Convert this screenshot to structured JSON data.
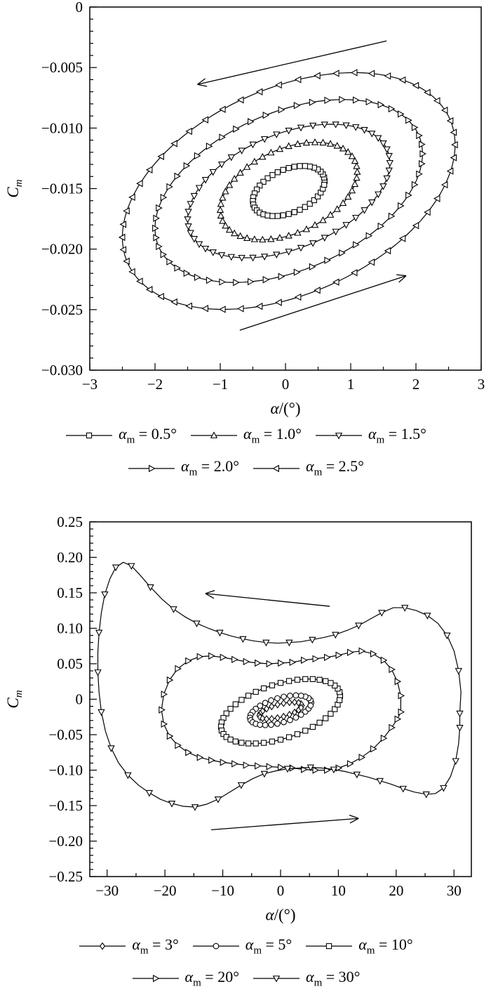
{
  "page": {
    "background": "#ffffff",
    "ink": "#000000"
  },
  "chart_data": [
    {
      "type": "line",
      "title": "",
      "xlabel": "α/(°)",
      "ylabel": {
        "main": "C",
        "sub": "m"
      },
      "xlim": [
        -3,
        3
      ],
      "ylim": [
        -0.03,
        0
      ],
      "x_minor_step": 0.5,
      "y_minor_step": 0.001,
      "grid": false,
      "legend_position": "below",
      "legend_rows": [
        3,
        2
      ],
      "line_color": "#000000",
      "xticks": [
        {
          "v": -3,
          "label": "−3"
        },
        {
          "v": -2,
          "label": "−2"
        },
        {
          "v": -1,
          "label": "−1"
        },
        {
          "v": 0,
          "label": "0"
        },
        {
          "v": 1,
          "label": "1"
        },
        {
          "v": 2,
          "label": "2"
        },
        {
          "v": 3,
          "label": "3"
        }
      ],
      "yticks": [
        {
          "v": 0,
          "label": "0"
        },
        {
          "v": -0.005,
          "label": "−0.005"
        },
        {
          "v": -0.01,
          "label": "−0.010"
        },
        {
          "v": -0.015,
          "label": "−0.015"
        },
        {
          "v": -0.02,
          "label": "−0.020"
        },
        {
          "v": -0.025,
          "label": "−0.025"
        },
        {
          "v": -0.03,
          "label": "−0.030"
        }
      ],
      "arrows": [
        {
          "from": [
            1.55,
            -0.0028
          ],
          "to": [
            -1.35,
            -0.0064
          ]
        },
        {
          "from": [
            -0.7,
            -0.0267
          ],
          "to": [
            1.85,
            -0.0222
          ]
        }
      ],
      "series": [
        {
          "marker": "square",
          "legend": {
            "symbol": "α",
            "subscript": "m",
            "rest": " = 0.5°"
          },
          "shape": {
            "kind": "sheared-ellipse",
            "cx": 0.05,
            "cy": -0.0152,
            "rx": 0.55,
            "h": 0.0019,
            "shear": 0.0015
          },
          "n_points": 40
        },
        {
          "marker": "tri-up",
          "legend": {
            "symbol": "α",
            "subscript": "m",
            "rest": " = 1.0°"
          },
          "shape": {
            "kind": "sheared-ellipse",
            "cx": 0.05,
            "cy": -0.0152,
            "rx": 1.05,
            "h": 0.0037,
            "shear": 0.0015
          },
          "n_points": 48
        },
        {
          "marker": "tri-down",
          "legend": {
            "symbol": "α",
            "subscript": "m",
            "rest": " = 1.5°"
          },
          "shape": {
            "kind": "sheared-ellipse",
            "cx": 0.05,
            "cy": -0.0152,
            "rx": 1.55,
            "h": 0.005,
            "shear": 0.0015
          },
          "n_points": 52
        },
        {
          "marker": "tri-right",
          "legend": {
            "symbol": "α",
            "subscript": "m",
            "rest": " = 2.0°"
          },
          "shape": {
            "kind": "sheared-ellipse",
            "cx": 0.05,
            "cy": -0.0152,
            "rx": 2.05,
            "h": 0.0069,
            "shear": 0.0015
          },
          "n_points": 54
        },
        {
          "marker": "tri-left",
          "legend": {
            "symbol": "α",
            "subscript": "m",
            "rest": " = 2.5°"
          },
          "shape": {
            "kind": "sheared-ellipse",
            "cx": 0.05,
            "cy": -0.0152,
            "rx": 2.55,
            "h": 0.009,
            "shear": 0.0015
          },
          "n_points": 54
        }
      ]
    },
    {
      "type": "line",
      "title": "",
      "xlabel": "α/(°)",
      "ylabel": {
        "main": "C",
        "sub": "m"
      },
      "xlim": [
        -33,
        33
      ],
      "ylim": [
        -0.25,
        0.25
      ],
      "x_minor_step": 5,
      "y_minor_step": 0.01,
      "grid": false,
      "legend_position": "below",
      "legend_rows": [
        3,
        2
      ],
      "line_color": "#000000",
      "xticks": [
        {
          "v": -30,
          "label": "−30"
        },
        {
          "v": -20,
          "label": "−20"
        },
        {
          "v": -10,
          "label": "−10"
        },
        {
          "v": 0,
          "label": "0"
        },
        {
          "v": 10,
          "label": "10"
        },
        {
          "v": 20,
          "label": "20"
        },
        {
          "v": 30,
          "label": "30"
        }
      ],
      "yticks": [
        {
          "v": 0.25,
          "label": "0.25"
        },
        {
          "v": 0.2,
          "label": "0.20"
        },
        {
          "v": 0.15,
          "label": "0.15"
        },
        {
          "v": 0.1,
          "label": "0.10"
        },
        {
          "v": 0.05,
          "label": "0.05"
        },
        {
          "v": 0,
          "label": "0"
        },
        {
          "v": -0.05,
          "label": "−0.05"
        },
        {
          "v": -0.1,
          "label": "−0.10"
        },
        {
          "v": -0.15,
          "label": "−0.15"
        },
        {
          "v": -0.2,
          "label": "−0.20"
        },
        {
          "v": -0.25,
          "label": "−0.25"
        }
      ],
      "arrows": [
        {
          "from": [
            8.5,
            0.131
          ],
          "to": [
            -13,
            0.149
          ]
        },
        {
          "from": [
            -12,
            -0.184
          ],
          "to": [
            13.5,
            -0.168
          ]
        }
      ],
      "series": [
        {
          "marker": "diamond",
          "legend": {
            "symbol": "α",
            "subscript": "m",
            "rest": " = 3°"
          },
          "shape": {
            "kind": "sheared-ellipse",
            "cx": 0,
            "cy": -0.016,
            "rx": 3.7,
            "h": 0.0095,
            "shear": 0.0019
          },
          "n_points": 22
        },
        {
          "marker": "circle",
          "legend": {
            "symbol": "α",
            "subscript": "m",
            "rest": " = 5°"
          },
          "shape": {
            "kind": "sheared-ellipse",
            "cx": 0,
            "cy": -0.0155,
            "rx": 5.3,
            "h": 0.018,
            "shear": 0.002
          },
          "n_points": 30
        },
        {
          "marker": "square",
          "legend": {
            "symbol": "α",
            "subscript": "m",
            "rest": " = 10°"
          },
          "shape": {
            "kind": "sheared-ellipse",
            "cx": 0,
            "cy": -0.017,
            "rx": 10.3,
            "h": 0.04,
            "shear": 0.0021
          },
          "n_points": 44
        },
        {
          "marker": "tri-right",
          "legend": {
            "symbol": "α",
            "subscript": "m",
            "rest": " = 20°"
          },
          "marker_every": 1,
          "points": [
            [
              20.8,
              -0.018
            ],
            [
              20.8,
              0.005
            ],
            [
              20.2,
              0.025
            ],
            [
              19.2,
              0.042
            ],
            [
              17.8,
              0.055
            ],
            [
              16,
              0.064
            ],
            [
              14,
              0.068
            ],
            [
              12,
              0.066
            ],
            [
              10,
              0.062
            ],
            [
              8,
              0.059
            ],
            [
              6,
              0.057
            ],
            [
              4,
              0.055
            ],
            [
              2,
              0.052
            ],
            [
              0,
              0.051
            ],
            [
              -2,
              0.05
            ],
            [
              -4,
              0.051
            ],
            [
              -6,
              0.053
            ],
            [
              -8,
              0.056
            ],
            [
              -10,
              0.059
            ],
            [
              -12,
              0.061
            ],
            [
              -14,
              0.06
            ],
            [
              -16,
              0.054
            ],
            [
              -17.8,
              0.043
            ],
            [
              -19.2,
              0.027
            ],
            [
              -20.2,
              0.007
            ],
            [
              -20.6,
              -0.015
            ],
            [
              -20.2,
              -0.035
            ],
            [
              -19.2,
              -0.052
            ],
            [
              -17.8,
              -0.065
            ],
            [
              -16,
              -0.075
            ],
            [
              -14,
              -0.082
            ],
            [
              -12,
              -0.086
            ],
            [
              -10,
              -0.089
            ],
            [
              -8,
              -0.091
            ],
            [
              -6,
              -0.093
            ],
            [
              -4,
              -0.094
            ],
            [
              -2,
              -0.095
            ],
            [
              0,
              -0.096
            ],
            [
              2,
              -0.097
            ],
            [
              4,
              -0.099
            ],
            [
              6,
              -0.1
            ],
            [
              8,
              -0.1
            ],
            [
              10,
              -0.097
            ],
            [
              12,
              -0.091
            ],
            [
              14,
              -0.082
            ],
            [
              16,
              -0.07
            ],
            [
              17.8,
              -0.055
            ],
            [
              19.2,
              -0.04
            ],
            [
              20.2,
              -0.028
            ]
          ]
        },
        {
          "marker": "tri-down",
          "legend": {
            "symbol": "α",
            "subscript": "m",
            "rest": " = 30°"
          },
          "marker_every": 2,
          "points": [
            [
              31,
              -0.02
            ],
            [
              31.2,
              0.01
            ],
            [
              30.8,
              0.04
            ],
            [
              30,
              0.068
            ],
            [
              28.8,
              0.09
            ],
            [
              27.2,
              0.107
            ],
            [
              25.4,
              0.118
            ],
            [
              23.5,
              0.125
            ],
            [
              21.5,
              0.129
            ],
            [
              19.5,
              0.129
            ],
            [
              17.5,
              0.122
            ],
            [
              15.5,
              0.113
            ],
            [
              13.5,
              0.104
            ],
            [
              11.5,
              0.097
            ],
            [
              9.5,
              0.091
            ],
            [
              7.5,
              0.087
            ],
            [
              5.5,
              0.084
            ],
            [
              3.5,
              0.081
            ],
            [
              1.5,
              0.08
            ],
            [
              -0.5,
              0.079
            ],
            [
              -2.5,
              0.08
            ],
            [
              -4.5,
              0.082
            ],
            [
              -6.5,
              0.085
            ],
            [
              -8.5,
              0.089
            ],
            [
              -10.5,
              0.094
            ],
            [
              -12.5,
              0.1
            ],
            [
              -14.5,
              0.107
            ],
            [
              -16.5,
              0.116
            ],
            [
              -18.5,
              0.127
            ],
            [
              -20.5,
              0.141
            ],
            [
              -22.5,
              0.158
            ],
            [
              -24.3,
              0.175
            ],
            [
              -25.8,
              0.188
            ],
            [
              -27.2,
              0.193
            ],
            [
              -28.5,
              0.186
            ],
            [
              -29.5,
              0.17
            ],
            [
              -30.4,
              0.148
            ],
            [
              -31,
              0.122
            ],
            [
              -31.4,
              0.094
            ],
            [
              -31.6,
              0.066
            ],
            [
              -31.6,
              0.038
            ],
            [
              -31.4,
              0.01
            ],
            [
              -31,
              -0.018
            ],
            [
              -30.3,
              -0.045
            ],
            [
              -29.3,
              -0.069
            ],
            [
              -28,
              -0.09
            ],
            [
              -26.4,
              -0.107
            ],
            [
              -24.6,
              -0.121
            ],
            [
              -22.7,
              -0.132
            ],
            [
              -20.8,
              -0.141
            ],
            [
              -18.8,
              -0.147
            ],
            [
              -16.8,
              -0.151
            ],
            [
              -14.8,
              -0.152
            ],
            [
              -12.8,
              -0.148
            ],
            [
              -10.8,
              -0.141
            ],
            [
              -8.8,
              -0.131
            ],
            [
              -6.8,
              -0.121
            ],
            [
              -4.8,
              -0.112
            ],
            [
              -2.8,
              -0.105
            ],
            [
              -0.8,
              -0.101
            ],
            [
              1.2,
              -0.098
            ],
            [
              3.2,
              -0.097
            ],
            [
              5.2,
              -0.096
            ],
            [
              7.2,
              -0.097
            ],
            [
              9.2,
              -0.099
            ],
            [
              11.2,
              -0.102
            ],
            [
              13.2,
              -0.106
            ],
            [
              15.2,
              -0.11
            ],
            [
              17.2,
              -0.115
            ],
            [
              19.2,
              -0.12
            ],
            [
              21.2,
              -0.126
            ],
            [
              23.2,
              -0.131
            ],
            [
              25.2,
              -0.134
            ],
            [
              26.8,
              -0.133
            ],
            [
              28.2,
              -0.125
            ],
            [
              29.4,
              -0.109
            ],
            [
              30.3,
              -0.087
            ],
            [
              30.8,
              -0.062
            ],
            [
              31,
              -0.04
            ]
          ]
        }
      ]
    }
  ]
}
